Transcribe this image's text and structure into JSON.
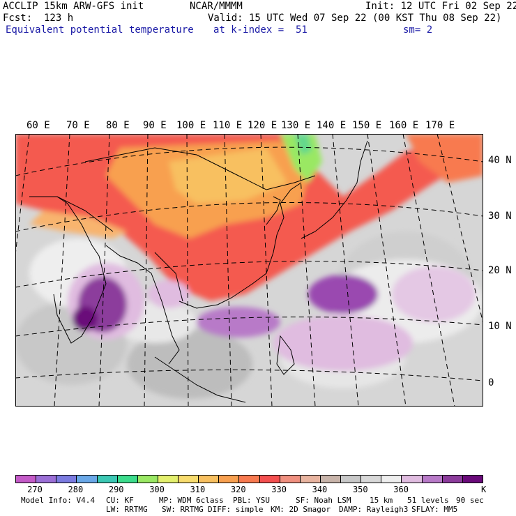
{
  "header": {
    "model": "ACCLIP 15km ARW-GFS init",
    "center": "NCAR/MMMM",
    "init": "Init: 12 UTC Fri 02 Sep 22",
    "fcst": "Fcst:  123 h",
    "valid": "Valid: 15 UTC Wed 07 Sep 22 (00 KST Thu 08 Sep 22)",
    "field": "Equivalent potential temperature",
    "level": "at k-index =  51",
    "smooth": "sm= 2"
  },
  "axes": {
    "lon_labels": [
      "60 E",
      "70 E",
      "80 E",
      "90 E",
      "100 E",
      "110 E",
      "120 E",
      "130 E",
      "140 E",
      "150 E",
      "160 E",
      "170 E"
    ],
    "lat_labels": [
      "40 N",
      "30 N",
      "20 N",
      "10 N",
      "0"
    ]
  },
  "colorbar": {
    "unit": "K",
    "tick_labels": [
      "270",
      "280",
      "290",
      "300",
      "310",
      "320",
      "330",
      "340",
      "350",
      "360"
    ],
    "colors": [
      "#c45bc8",
      "#9b6fd6",
      "#7b7be0",
      "#6aa8e8",
      "#3cc8b4",
      "#3cdc8c",
      "#9ae864",
      "#e4f06e",
      "#f8dc6e",
      "#f8c060",
      "#f8a050",
      "#f87a50",
      "#f45050",
      "#f09080",
      "#e8b4a0",
      "#c8b4aa",
      "#c8c8c8",
      "#d8d8d8",
      "#eeeeee",
      "#e0bce0",
      "#b87ac8",
      "#8c3c9c",
      "#6a0a7a"
    ]
  },
  "footer": {
    "line1": [
      "Model Info: V4.4",
      "CU: KF",
      "MP: WDM 6class",
      "PBL: YSU",
      "SF: Noah LSM",
      "15 km",
      "51 levels",
      "90 sec"
    ],
    "line2": [
      "LW: RRTMG",
      "SW: RRTMG",
      "DIFF: simple",
      "KM: 2D Smagor",
      "DAMP: Rayleigh3",
      "SFLAY: MM5"
    ]
  }
}
